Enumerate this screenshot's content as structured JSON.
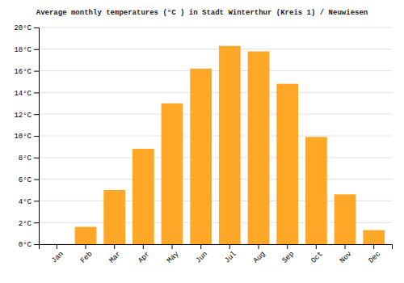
{
  "chart_data": {
    "type": "bar",
    "title": "Average monthly temperatures (°C ) in Stadt Winterthur (Kreis 1) / Neuwiesen",
    "categories": [
      "Jan",
      "Feb",
      "Mar",
      "Apr",
      "May",
      "Jun",
      "Jul",
      "Aug",
      "Sep",
      "Oct",
      "Nov",
      "Dec"
    ],
    "values": [
      0,
      1.6,
      5.0,
      8.8,
      13.0,
      16.2,
      18.3,
      17.8,
      14.8,
      9.9,
      4.6,
      1.3
    ],
    "color": "#FFA726",
    "ylim": [
      0,
      20
    ],
    "yticks": [
      {
        "value": 0,
        "label": "0°C"
      },
      {
        "value": 2,
        "label": "2°C"
      },
      {
        "value": 4,
        "label": "4°C"
      },
      {
        "value": 6,
        "label": "6°C"
      },
      {
        "value": 8,
        "label": "8°C"
      },
      {
        "value": 10,
        "label": "10°C"
      },
      {
        "value": 12,
        "label": "12°C"
      },
      {
        "value": 14,
        "label": "14°C"
      },
      {
        "value": 16,
        "label": "16°C"
      },
      {
        "value": 18,
        "label": "18°C"
      },
      {
        "value": 20,
        "label": "20°C"
      }
    ],
    "grid": true
  }
}
